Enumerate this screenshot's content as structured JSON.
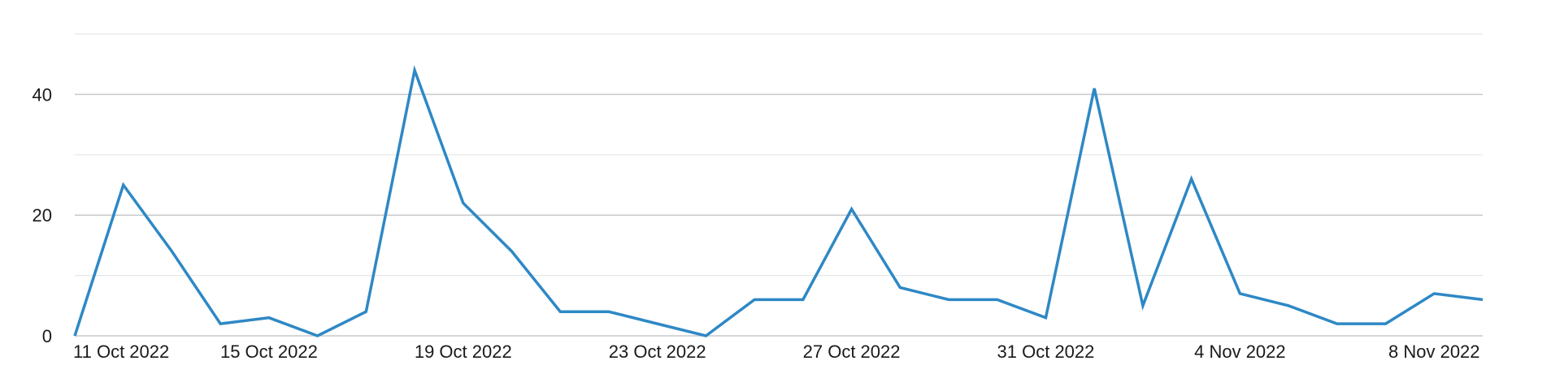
{
  "chart_data": {
    "type": "line",
    "title": "",
    "xlabel": "",
    "ylabel": "",
    "x": [
      "2022-10-11",
      "2022-10-12",
      "2022-10-13",
      "2022-10-14",
      "2022-10-15",
      "2022-10-16",
      "2022-10-17",
      "2022-10-18",
      "2022-10-19",
      "2022-10-20",
      "2022-10-21",
      "2022-10-22",
      "2022-10-23",
      "2022-10-24",
      "2022-10-25",
      "2022-10-26",
      "2022-10-27",
      "2022-10-28",
      "2022-10-29",
      "2022-10-30",
      "2022-10-31",
      "2022-11-01",
      "2022-11-02",
      "2022-11-03",
      "2022-11-04",
      "2022-11-05",
      "2022-11-06",
      "2022-11-07",
      "2022-11-08",
      "2022-11-09"
    ],
    "series": [
      {
        "values": [
          0,
          25,
          14,
          2,
          3,
          0,
          4,
          44,
          22,
          14,
          4,
          4,
          2,
          0,
          6,
          6,
          21,
          8,
          6,
          6,
          3,
          41,
          5,
          26,
          7,
          5,
          2,
          2,
          7,
          6
        ]
      }
    ],
    "ylim": [
      0,
      50
    ],
    "y_ticks": [
      0,
      20,
      40
    ],
    "y_tick_labels": [
      "0",
      "20",
      "40"
    ],
    "y_minor_ticks": [
      10,
      30,
      50
    ],
    "x_tick_labels": [
      {
        "x": "2022-10-11",
        "label": "11 Oct 2022"
      },
      {
        "x": "2022-10-15",
        "label": "15 Oct 2022"
      },
      {
        "x": "2022-10-19",
        "label": "19 Oct 2022"
      },
      {
        "x": "2022-10-23",
        "label": "23 Oct 2022"
      },
      {
        "x": "2022-10-27",
        "label": "27 Oct 2022"
      },
      {
        "x": "2022-10-31",
        "label": "31 Oct 2022"
      },
      {
        "x": "2022-11-04",
        "label": "4 Nov 2022"
      },
      {
        "x": "2022-11-08",
        "label": "8 Nov 2022"
      }
    ],
    "grid": true,
    "legend": "none",
    "line_color": "#2e88c5"
  }
}
